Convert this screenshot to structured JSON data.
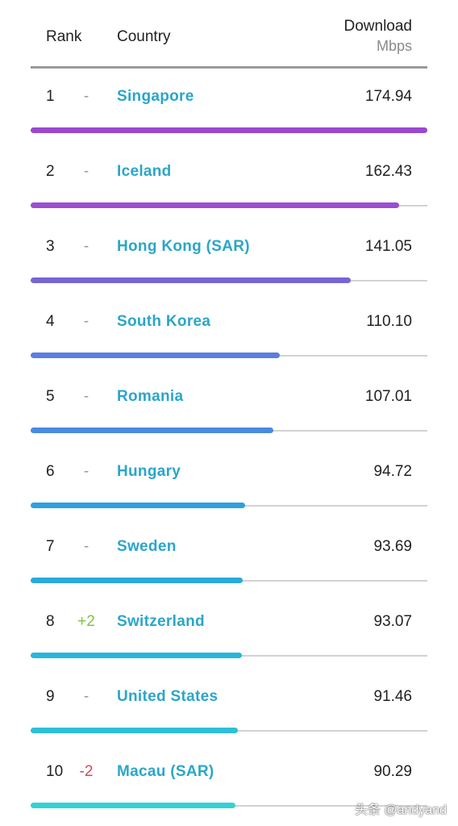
{
  "header": {
    "rank_label": "Rank",
    "country_label": "Country",
    "download_label": "Download",
    "unit_label": "Mbps"
  },
  "rows": [
    {
      "rank": "1",
      "change": "-",
      "country": "Singapore",
      "value": "174.94",
      "bar_fraction": 1.0,
      "bar_color": "#9a48cf",
      "change_color": "#9a9a9a"
    },
    {
      "rank": "2",
      "change": "-",
      "country": "Iceland",
      "value": "162.43",
      "bar_fraction": 0.929,
      "bar_color": "#9a4ed0",
      "change_color": "#9a9a9a"
    },
    {
      "rank": "3",
      "change": "-",
      "country": "Hong Kong (SAR)",
      "value": "141.05",
      "bar_fraction": 0.807,
      "bar_color": "#7864d4",
      "change_color": "#9a9a9a"
    },
    {
      "rank": "4",
      "change": "-",
      "country": "South Korea",
      "value": "110.10",
      "bar_fraction": 0.629,
      "bar_color": "#5a7fdc",
      "change_color": "#9a9a9a"
    },
    {
      "rank": "5",
      "change": "-",
      "country": "Romania",
      "value": "107.01",
      "bar_fraction": 0.612,
      "bar_color": "#4a8ae0",
      "change_color": "#9a9a9a"
    },
    {
      "rank": "6",
      "change": "-",
      "country": "Hungary",
      "value": "94.72",
      "bar_fraction": 0.541,
      "bar_color": "#2ea0df",
      "change_color": "#9a9a9a"
    },
    {
      "rank": "7",
      "change": "-",
      "country": "Sweden",
      "value": "93.69",
      "bar_fraction": 0.535,
      "bar_color": "#2aaadc",
      "change_color": "#9a9a9a"
    },
    {
      "rank": "8",
      "change": "+2",
      "country": "Switzerland",
      "value": "93.07",
      "bar_fraction": 0.532,
      "bar_color": "#28b6da",
      "change_color": "#7fc244"
    },
    {
      "rank": "9",
      "change": "-",
      "country": "United States",
      "value": "91.46",
      "bar_fraction": 0.523,
      "bar_color": "#2cc0d8",
      "change_color": "#9a9a9a"
    },
    {
      "rank": "10",
      "change": "-2",
      "country": "Macau (SAR)",
      "value": "90.29",
      "bar_fraction": 0.516,
      "bar_color": "#35d2d4",
      "change_color": "#d04a5a"
    }
  ],
  "watermark": "头条 @andyand"
}
